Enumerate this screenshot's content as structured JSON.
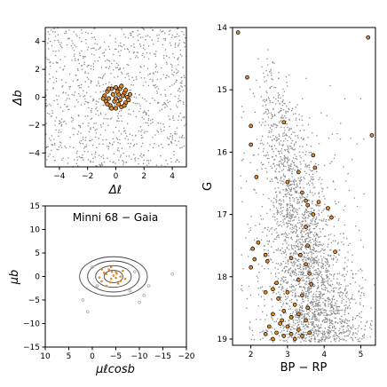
{
  "chart_data": [
    {
      "type": "scatter",
      "panel": "spatial",
      "xlabel": "Δℓ",
      "ylabel": "Δb",
      "xlim": [
        -5,
        5
      ],
      "ylim": [
        -5,
        5
      ],
      "xticks": [
        "−4",
        "−2",
        "0",
        "2",
        "4"
      ],
      "yticks": [
        "4",
        "2",
        "0",
        "−2",
        "−4"
      ],
      "xtick_values": [
        -4,
        -2,
        0,
        2,
        4
      ],
      "ytick_values": [
        4,
        2,
        0,
        -2,
        -4
      ],
      "series": [
        {
          "role": "field",
          "color": "#8c8c8c",
          "note": "uniform field stars over full panel",
          "density": 950
        },
        {
          "role": "members",
          "color": "#e08a2c",
          "edge": "#000000",
          "points": [
            [
              -0.6,
              0.4
            ],
            [
              -0.3,
              0.6
            ],
            [
              0.0,
              0.7
            ],
            [
              0.3,
              0.6
            ],
            [
              0.6,
              0.3
            ],
            [
              0.8,
              0.0
            ],
            [
              0.7,
              -0.4
            ],
            [
              0.4,
              -0.7
            ],
            [
              0.0,
              -0.8
            ],
            [
              -0.4,
              -0.6
            ],
            [
              -0.7,
              -0.3
            ],
            [
              -0.8,
              0.1
            ],
            [
              -0.2,
              0.2
            ],
            [
              0.2,
              0.2
            ],
            [
              0.3,
              -0.2
            ],
            [
              -0.1,
              -0.3
            ],
            [
              0.5,
              0.1
            ],
            [
              -0.5,
              -0.1
            ],
            [
              0.1,
              0.4
            ],
            [
              0.0,
              -0.1
            ],
            [
              0.9,
              -0.2
            ],
            [
              -0.9,
              -0.1
            ],
            [
              0.6,
              -0.6
            ],
            [
              -0.5,
              0.6
            ],
            [
              0.2,
              -0.5
            ],
            [
              1.0,
              0.2
            ],
            [
              0.4,
              0.8
            ],
            [
              -0.3,
              -0.8
            ],
            [
              0.7,
              0.5
            ],
            [
              -0.6,
              -0.5
            ]
          ]
        }
      ]
    },
    {
      "type": "scatter",
      "panel": "proper-motion",
      "title": "Minni 68  −  Gaia",
      "xlabel": "μℓcosb",
      "ylabel": "μb",
      "xlim": [
        10,
        -20
      ],
      "ylim": [
        -15,
        15
      ],
      "xticks": [
        "10",
        "5",
        "0",
        "−5",
        "−10",
        "−15",
        "−20"
      ],
      "yticks": [
        "15",
        "10",
        "5",
        "0",
        "−5",
        "−10",
        "−15"
      ],
      "xtick_values": [
        10,
        5,
        0,
        -5,
        -10,
        -15,
        -20
      ],
      "ytick_values": [
        15,
        10,
        5,
        0,
        -5,
        -10,
        -15
      ],
      "contours": [
        {
          "cx": -4.5,
          "cy": 0.0,
          "rx": 2.0,
          "ry": 1.3
        },
        {
          "cx": -4.5,
          "cy": 0.0,
          "rx": 3.8,
          "ry": 2.3
        },
        {
          "cx": -4.5,
          "cy": 0.0,
          "rx": 5.5,
          "ry": 3.3
        },
        {
          "cx": -4.5,
          "cy": 0.0,
          "rx": 7.2,
          "ry": 4.2
        }
      ],
      "series": [
        {
          "role": "members",
          "color": "#e08a2c",
          "points": [
            [
              -3,
              0.5
            ],
            [
              -4,
              -0.5
            ],
            [
              -5,
              1
            ],
            [
              -6,
              0
            ],
            [
              -2,
              -1
            ],
            [
              -3.5,
              1.5
            ],
            [
              -5.5,
              -1.5
            ],
            [
              -4.5,
              0.2
            ],
            [
              -2.5,
              0.8
            ],
            [
              -6.5,
              1.2
            ],
            [
              -3.8,
              -1.2
            ],
            [
              -5.2,
              0.6
            ],
            [
              -1.5,
              -0.2
            ],
            [
              -7,
              -0.5
            ],
            [
              -4,
              2
            ],
            [
              -3,
              -2
            ],
            [
              -6,
              -1
            ],
            [
              -2,
              1.5
            ],
            [
              -5,
              -0.3
            ],
            [
              -4.2,
              1
            ]
          ]
        },
        {
          "role": "field",
          "color": "#aaaaaa",
          "points": [
            [
              -17,
              0.5
            ],
            [
              1,
              -7.5
            ],
            [
              -10,
              -5.5
            ],
            [
              -1,
              -2
            ],
            [
              2,
              -5
            ],
            [
              -12,
              -2
            ],
            [
              -8,
              -3
            ],
            [
              0,
              2
            ],
            [
              -9,
              1
            ],
            [
              -11,
              -4
            ]
          ]
        }
      ]
    },
    {
      "type": "scatter",
      "panel": "cmd",
      "xlabel": "BP − RP",
      "ylabel": "G",
      "xlim": [
        1.5,
        5.4
      ],
      "ylim": [
        19.1,
        14.0
      ],
      "xticks": [
        "2",
        "3",
        "4",
        "5"
      ],
      "yticks": [
        "14",
        "15",
        "16",
        "17",
        "18",
        "19"
      ],
      "xtick_values": [
        2,
        3,
        4,
        5
      ],
      "ytick_values": [
        14,
        15,
        16,
        17,
        18,
        19
      ],
      "series": [
        {
          "role": "field",
          "color": "#8c8c8c",
          "note": "dense field sequence centred near BP−RP≈3, widening toward faint magnitudes",
          "density": 2600
        },
        {
          "role": "members",
          "color": "#e08a2c",
          "edge": "#000000",
          "points": [
            [
              1.65,
              14.08
            ],
            [
              5.2,
              14.16
            ],
            [
              1.9,
              14.8
            ],
            [
              2.0,
              15.58
            ],
            [
              2.9,
              15.52
            ],
            [
              5.3,
              15.73
            ],
            [
              2.0,
              15.88
            ],
            [
              3.7,
              16.05
            ],
            [
              3.75,
              16.25
            ],
            [
              2.15,
              16.4
            ],
            [
              3.0,
              16.48
            ],
            [
              3.3,
              16.32
            ],
            [
              3.4,
              16.65
            ],
            [
              3.5,
              16.78
            ],
            [
              3.55,
              16.85
            ],
            [
              3.85,
              16.8
            ],
            [
              4.1,
              16.9
            ],
            [
              4.2,
              17.05
            ],
            [
              3.7,
              17.0
            ],
            [
              3.5,
              17.2
            ],
            [
              2.2,
              17.45
            ],
            [
              2.05,
              17.55
            ],
            [
              3.55,
              17.5
            ],
            [
              4.3,
              17.6
            ],
            [
              2.1,
              17.72
            ],
            [
              2.4,
              17.65
            ],
            [
              2.45,
              17.75
            ],
            [
              3.1,
              17.7
            ],
            [
              3.35,
              17.65
            ],
            [
              3.5,
              17.8
            ],
            [
              2.0,
              17.85
            ],
            [
              3.6,
              17.95
            ],
            [
              3.3,
              18.05
            ],
            [
              2.7,
              18.1
            ],
            [
              3.65,
              18.12
            ],
            [
              2.4,
              18.25
            ],
            [
              2.6,
              18.2
            ],
            [
              3.0,
              18.25
            ],
            [
              3.4,
              18.3
            ],
            [
              2.75,
              18.35
            ],
            [
              3.2,
              18.45
            ],
            [
              3.55,
              18.5
            ],
            [
              2.9,
              18.55
            ],
            [
              3.3,
              18.6
            ],
            [
              2.6,
              18.6
            ],
            [
              3.1,
              18.65
            ],
            [
              3.5,
              18.7
            ],
            [
              2.8,
              18.75
            ],
            [
              2.5,
              18.8
            ],
            [
              3.0,
              18.8
            ],
            [
              3.3,
              18.85
            ],
            [
              2.7,
              18.9
            ],
            [
              3.1,
              18.92
            ],
            [
              2.9,
              18.95
            ],
            [
              3.4,
              18.95
            ],
            [
              2.6,
              19.0
            ],
            [
              3.2,
              19.0
            ],
            [
              2.4,
              18.92
            ],
            [
              3.6,
              18.9
            ],
            [
              2.85,
              18.7
            ]
          ]
        }
      ]
    }
  ]
}
